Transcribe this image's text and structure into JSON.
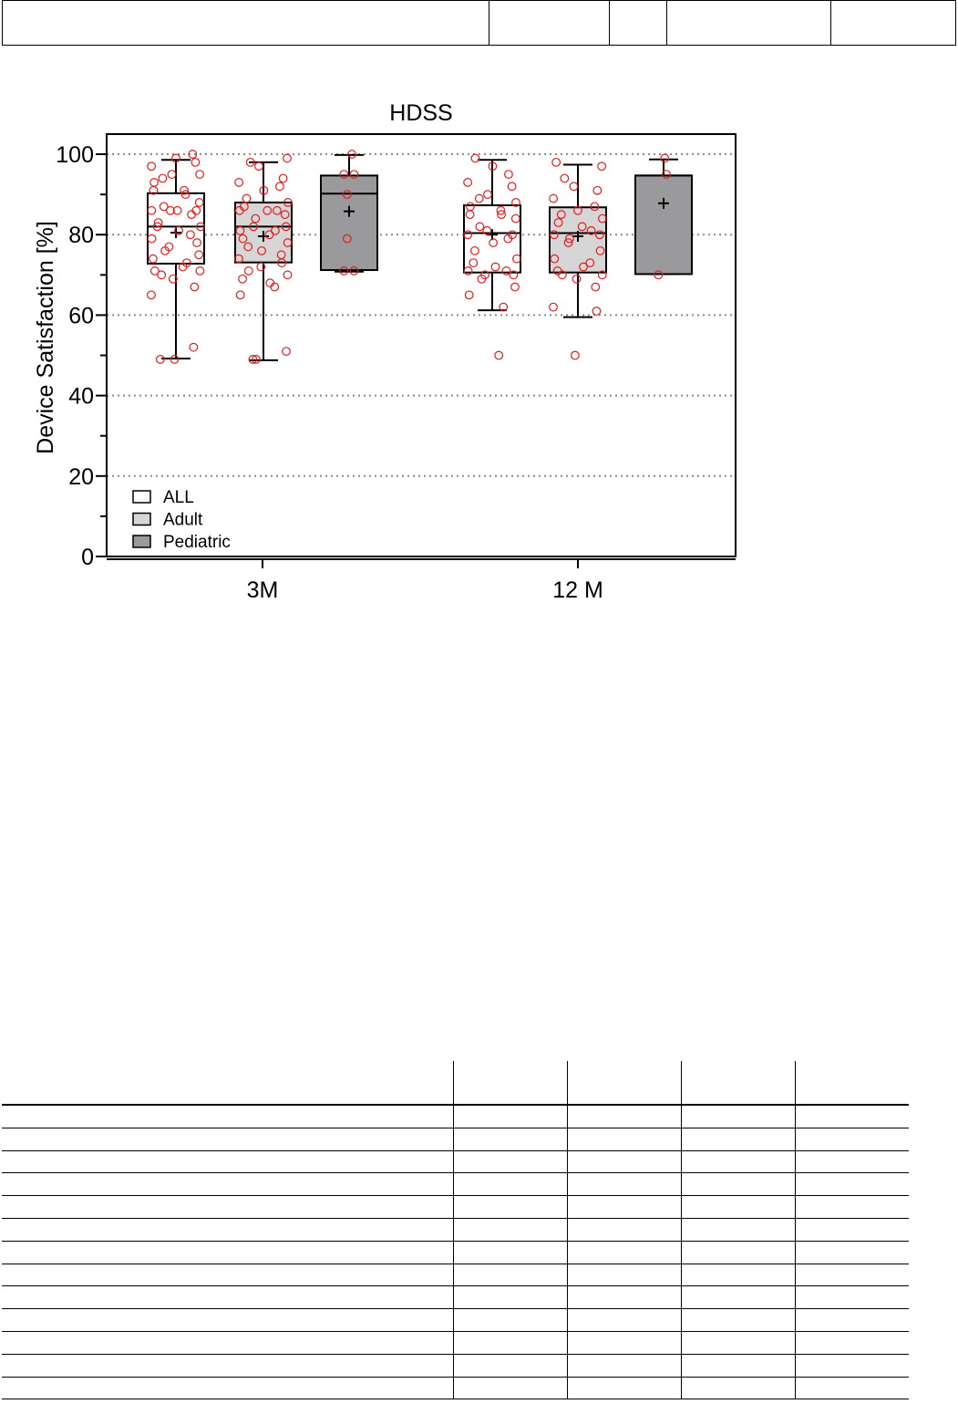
{
  "chart_data": {
    "type": "box",
    "title": "HDSS",
    "ylabel": "Device Satisfaction [%]",
    "xlabel": "",
    "ylim": [
      0,
      105
    ],
    "yticks": [
      0,
      20,
      40,
      60,
      80,
      100
    ],
    "yticklabels": [
      "0",
      "20",
      "40",
      "60",
      "80",
      "100"
    ],
    "grid": "horizontal dotted at 20, 40, 60, 80, 100",
    "legend_position": "bottom-left",
    "legend": [
      {
        "label": "ALL",
        "color": "#ffffff"
      },
      {
        "label": "Adult",
        "color": "#d6d6d6"
      },
      {
        "label": "Pediatric",
        "color": "#9a9a9c"
      }
    ],
    "categories": [
      "3M",
      "12 M"
    ],
    "point_color": "#e31a1c",
    "boxes": [
      {
        "category": "3M",
        "group": "ALL",
        "min": 49.2,
        "q1": 72.8,
        "median": 82.0,
        "q3": 90.3,
        "max": 98.6,
        "mean": 80.5,
        "points": [
          99,
          100,
          97,
          98,
          95,
          94,
          95,
          93,
          91,
          90,
          91,
          88,
          87,
          86,
          86,
          86,
          85,
          86,
          83,
          82,
          82,
          81,
          80,
          79,
          78,
          77,
          76,
          75,
          74,
          73,
          72,
          71,
          71,
          70,
          69,
          67,
          65,
          52,
          49,
          49
        ]
      },
      {
        "category": "3M",
        "group": "Adult",
        "min": 48.8,
        "q1": 73.1,
        "median": 82.0,
        "q3": 88.0,
        "max": 98.0,
        "mean": 79.6,
        "points": [
          99,
          98,
          97,
          94,
          93,
          92,
          91,
          89,
          88,
          87,
          86,
          86,
          86,
          85,
          84,
          82,
          82,
          81,
          81,
          80,
          79,
          78,
          77,
          76,
          75,
          74,
          73,
          72,
          71,
          70,
          69,
          68,
          67,
          65,
          51,
          49,
          49
        ]
      },
      {
        "category": "3M",
        "group": "Pediatric",
        "min": 70.8,
        "q1": 71.2,
        "median": 90.2,
        "q3": 94.7,
        "max": 99.8,
        "mean": 85.8,
        "points": [
          100,
          95,
          95,
          90,
          79,
          71,
          71
        ]
      },
      {
        "category": "12 M",
        "group": "ALL",
        "min": 61.2,
        "q1": 70.6,
        "median": 80.4,
        "q3": 87.3,
        "max": 98.6,
        "mean": 80.0,
        "points": [
          99,
          97,
          95,
          93,
          92,
          90,
          89,
          88,
          87,
          86,
          85,
          85,
          84,
          82,
          81,
          80,
          80,
          79,
          78,
          76,
          74,
          73,
          72,
          71,
          71,
          70,
          70,
          69,
          67,
          65,
          62,
          50
        ]
      },
      {
        "category": "12 M",
        "group": "Adult",
        "min": 59.5,
        "q1": 70.6,
        "median": 80.4,
        "q3": 86.8,
        "max": 97.4,
        "mean": 79.6,
        "points": [
          98,
          97,
          94,
          92,
          91,
          89,
          87,
          86,
          85,
          84,
          83,
          82,
          81,
          80,
          80,
          79,
          78,
          76,
          74,
          73,
          72,
          71,
          70,
          70,
          69,
          67,
          62,
          61,
          50
        ]
      },
      {
        "category": "12 M",
        "group": "Pediatric",
        "min": 70.2,
        "q1": 70.2,
        "median": 94.7,
        "q3": 94.7,
        "max": 98.7,
        "mean": 87.8,
        "points": [
          99,
          95,
          70
        ]
      }
    ]
  },
  "legend_entries": [
    {
      "key": "all",
      "label": "ALL",
      "fill": "#ffffff"
    },
    {
      "key": "adult",
      "label": "Adult",
      "fill": "#d6d6d6"
    },
    {
      "key": "pediatric",
      "label": "Pediatric",
      "fill": "#9a9a9c"
    }
  ]
}
